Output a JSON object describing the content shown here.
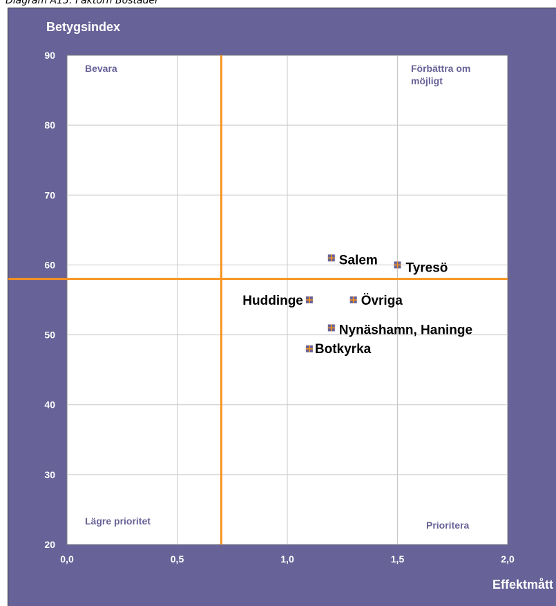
{
  "caption": "Diagram A13: Faktorn Bostäder",
  "chart_data": {
    "type": "scatter",
    "title": "",
    "xlabel": "Effektmått",
    "ylabel": "Betygsindex",
    "xlim": [
      0.0,
      2.0
    ],
    "ylim": [
      20,
      90
    ],
    "x_ticks": [
      "0,0",
      "0,5",
      "1,0",
      "1,5",
      "2,0"
    ],
    "x_tick_values": [
      0.0,
      0.5,
      1.0,
      1.5,
      2.0
    ],
    "y_ticks": [
      "20",
      "30",
      "40",
      "50",
      "60",
      "70",
      "80",
      "90"
    ],
    "y_tick_values": [
      20,
      30,
      40,
      50,
      60,
      70,
      80,
      90
    ],
    "grid": true,
    "reference_lines": {
      "x": 0.7,
      "y": 58,
      "color": "#f7931e"
    },
    "quadrant_labels": {
      "top_left": "Bevara",
      "top_right_line1": "Förbättra om",
      "top_right_line2": "möjligt",
      "bottom_left": "Lägre prioritet",
      "bottom_right": "Prioritera"
    },
    "points": [
      {
        "label": "Salem",
        "x": 1.2,
        "y": 61
      },
      {
        "label": "Tyresö",
        "x": 1.5,
        "y": 60
      },
      {
        "label": "Huddinge",
        "x": 1.1,
        "y": 55
      },
      {
        "label": "Övriga",
        "x": 1.3,
        "y": 55
      },
      {
        "label": "Nynäshamn, Haninge",
        "x": 1.2,
        "y": 51
      },
      {
        "label": "Botkyrka",
        "x": 1.1,
        "y": 48
      }
    ],
    "colors": {
      "background": "#676297",
      "plot_area": "#ffffff",
      "gridline": "#c8c8c8",
      "quadrant_text": "#676297",
      "marker_fill": "#676297",
      "marker_cross": "#f7931e"
    }
  }
}
